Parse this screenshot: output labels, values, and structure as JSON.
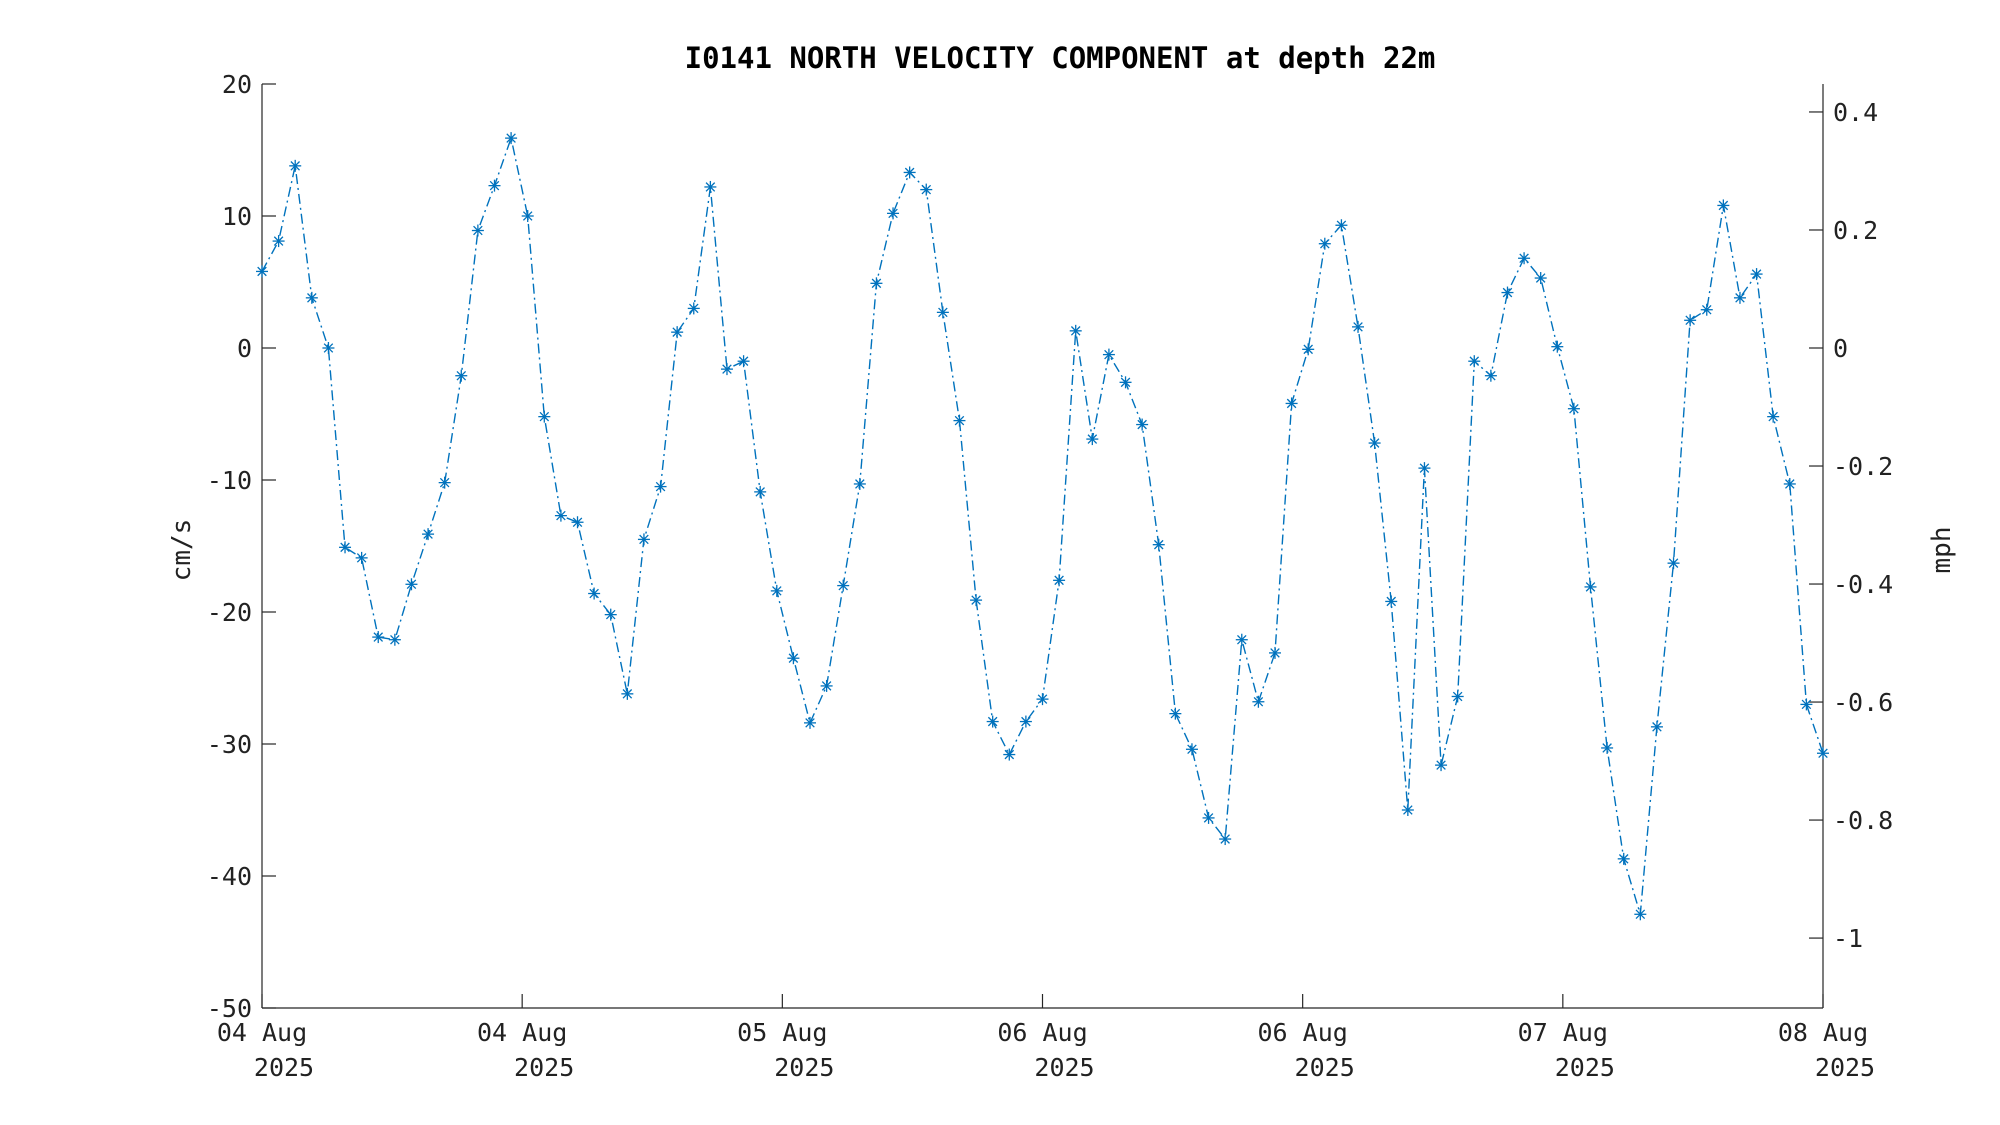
{
  "chart_data": {
    "type": "line",
    "title": "I0141 NORTH VELOCITY COMPONENT at depth 22m",
    "ylabel": "cm/s",
    "y2label": "mph",
    "ylim": [
      -50,
      20
    ],
    "y2lim_mph": [
      -1.1185,
      0.4474
    ],
    "yticks": [
      20,
      10,
      0,
      -10,
      -20,
      -30,
      -40,
      -50
    ],
    "y2ticks": [
      {
        "value": 0.4,
        "label": "0.4"
      },
      {
        "value": 0.2,
        "label": "0.2"
      },
      {
        "value": 0,
        "label": "0"
      },
      {
        "value": -0.2,
        "label": "-0.2"
      },
      {
        "value": -0.4,
        "label": "-0.4"
      },
      {
        "value": -0.6,
        "label": "-0.6"
      },
      {
        "value": -0.8,
        "label": "-0.8"
      },
      {
        "value": -1,
        "label": "-1"
      }
    ],
    "xticks": [
      {
        "value": 0,
        "day": "04 Aug",
        "year": "2025"
      },
      {
        "value": 1,
        "day": "04 Aug",
        "year": "2025"
      },
      {
        "value": 2,
        "day": "05 Aug",
        "year": "2025"
      },
      {
        "value": 3,
        "day": "06 Aug",
        "year": "2025"
      },
      {
        "value": 4,
        "day": "06 Aug",
        "year": "2025"
      },
      {
        "value": 5,
        "day": "07 Aug",
        "year": "2025"
      },
      {
        "value": 6,
        "day": "08 Aug",
        "year": "2025"
      }
    ],
    "xlim": [
      0,
      6
    ],
    "grid": false,
    "legend": "none",
    "series": [
      {
        "color": "#0072BD",
        "line_style": "dash-dot",
        "marker": "asterisk",
        "values": [
          5.8,
          8.1,
          13.8,
          3.8,
          0.0,
          -15.1,
          -15.9,
          -21.9,
          -22.1,
          -17.9,
          -14.1,
          -10.2,
          -2.1,
          8.9,
          12.3,
          15.9,
          10.0,
          -5.2,
          -12.7,
          -13.2,
          -18.6,
          -20.2,
          -26.2,
          -14.5,
          -10.5,
          1.2,
          3.0,
          12.2,
          -1.6,
          -1.0,
          -10.9,
          -18.4,
          -23.5,
          -28.4,
          -25.6,
          -18.0,
          -10.3,
          4.9,
          10.2,
          13.3,
          12.0,
          2.7,
          -5.5,
          -19.1,
          -28.3,
          -30.8,
          -28.3,
          -26.6,
          -17.6,
          1.3,
          -6.9,
          -0.5,
          -2.6,
          -5.8,
          -14.9,
          -27.7,
          -30.4,
          -35.6,
          -37.2,
          -22.1,
          -26.8,
          -23.1,
          -4.2,
          -0.1,
          7.9,
          9.3,
          1.6,
          -7.2,
          -19.2,
          -35.0,
          -9.1,
          -31.6,
          -26.4,
          -1.0,
          -2.1,
          4.2,
          6.8,
          5.3,
          0.1,
          -4.6,
          -18.1,
          -30.3,
          -38.7,
          -42.9,
          -28.7,
          -16.3,
          2.1,
          2.9,
          10.8,
          3.8,
          5.6,
          -5.2,
          -10.3,
          -27.0,
          -30.7
        ]
      }
    ]
  }
}
